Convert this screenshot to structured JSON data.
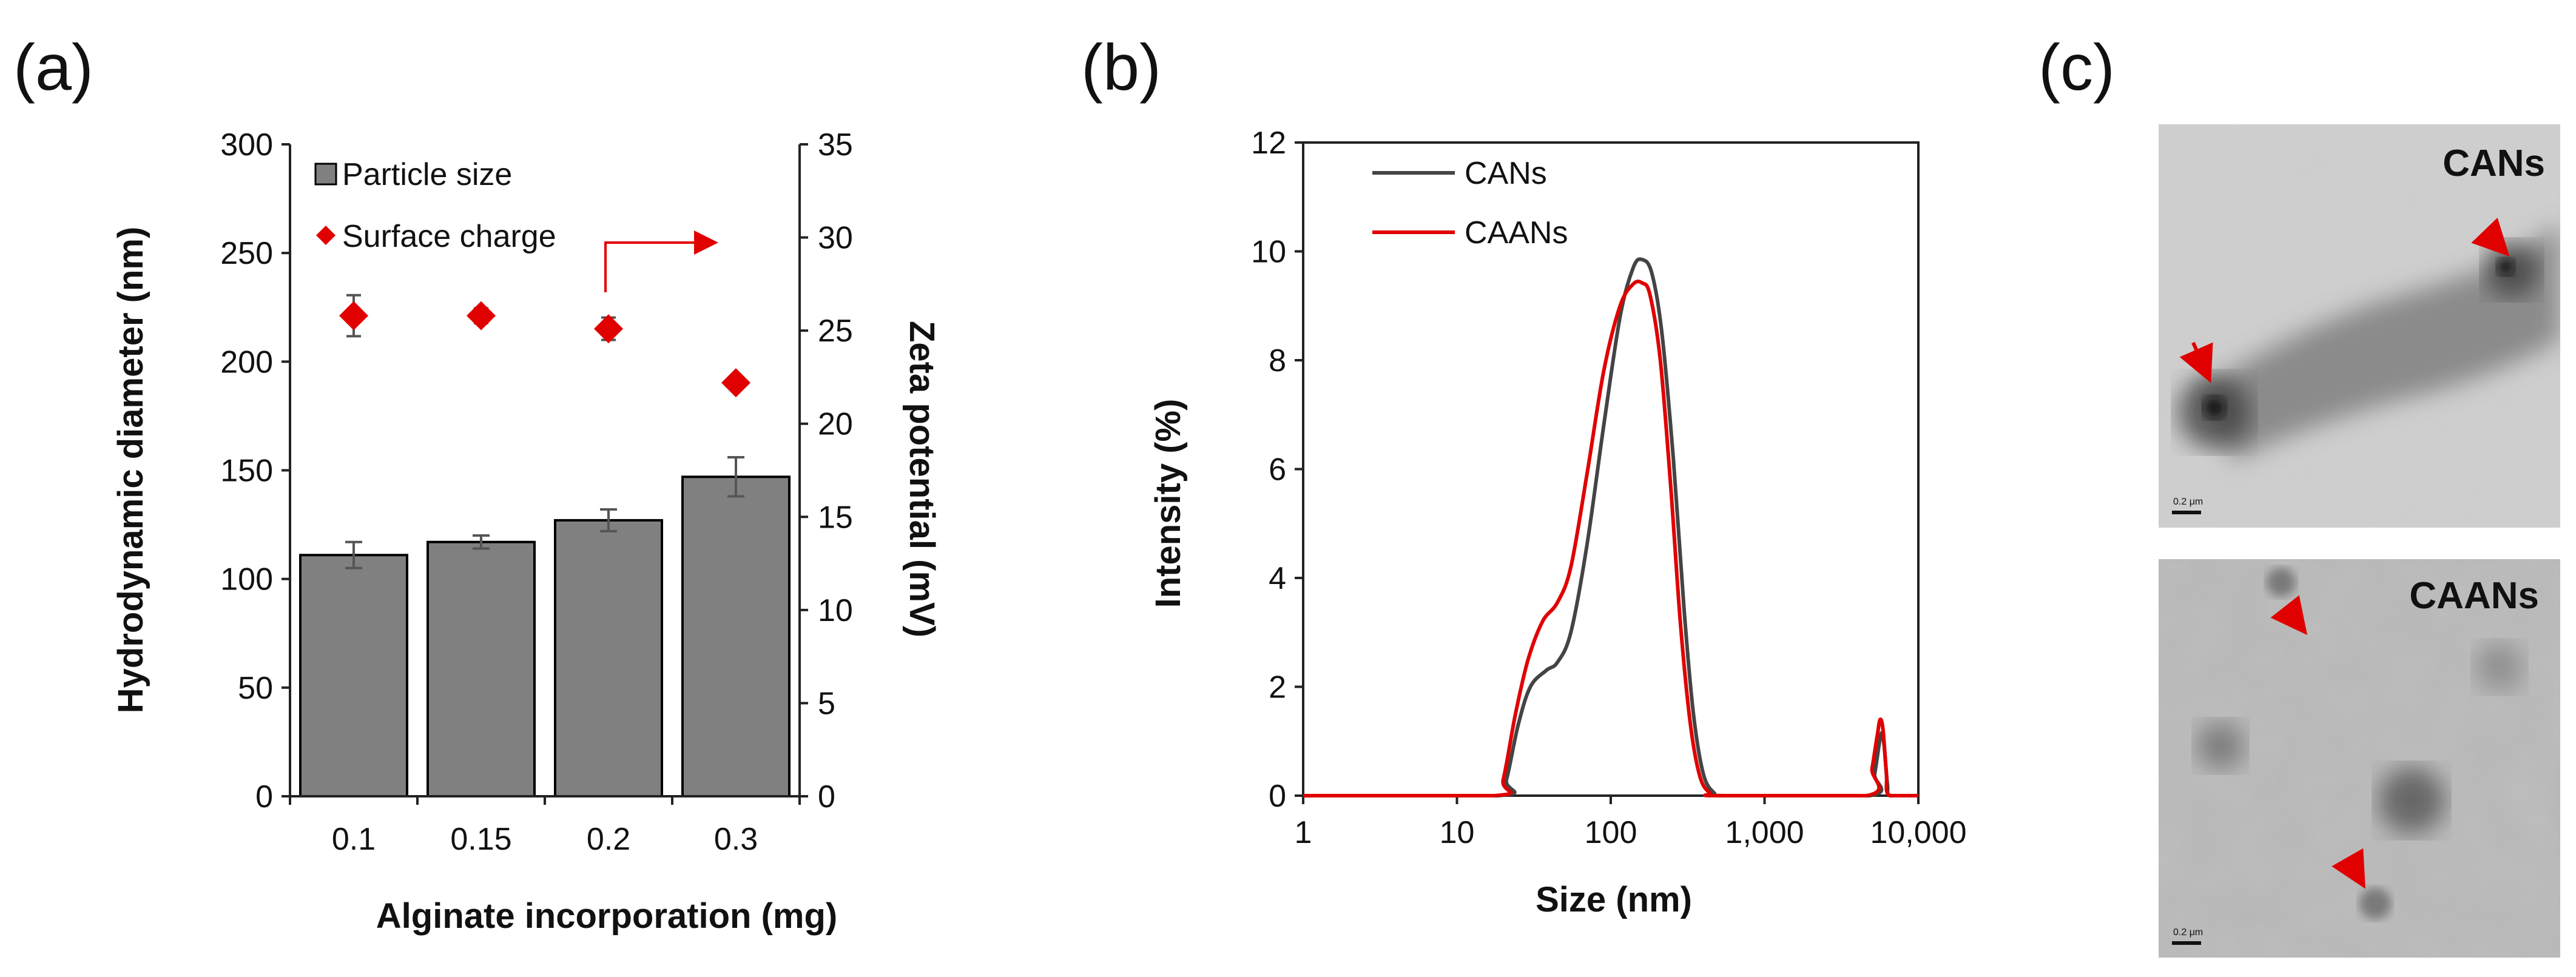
{
  "panels": {
    "a": "(a)",
    "b": "(b)",
    "c": "(c)"
  },
  "colors": {
    "bar": "#808080",
    "bar_stroke": "#000000",
    "surface_charge": "#E00000",
    "cans_line": "#444444",
    "caans_line": "#E00000",
    "arrow": "#E00000"
  },
  "chart_data": [
    {
      "id": "a",
      "type": "bar",
      "categories": [
        "0.1",
        "0.15",
        "0.2",
        "0.3"
      ],
      "series": [
        {
          "name": "Particle size",
          "axis": "left",
          "values": [
            111,
            117,
            127,
            147
          ],
          "errors": [
            6,
            3,
            5,
            9
          ]
        },
        {
          "name": "Surface charge",
          "axis": "right",
          "style": "marker",
          "values": [
            25.8,
            25.8,
            25.1,
            22.2
          ],
          "errors": [
            1.1,
            0.4,
            0.6,
            0.3
          ]
        }
      ],
      "xlabel": "Alginate incorporation (mg)",
      "ylabel": "Hydrodynamic diameter (nm)",
      "y2label": "Zeta potential (mV)",
      "ylim": [
        0,
        300
      ],
      "y2lim": [
        0,
        35
      ],
      "yticks": [
        "0",
        "50",
        "100",
        "150",
        "200",
        "250",
        "300"
      ],
      "y2ticks": [
        "0",
        "5",
        "10",
        "15",
        "20",
        "25",
        "30",
        "35"
      ],
      "legend": {
        "position": "top-left",
        "entries": [
          "Particle size",
          "Surface charge"
        ]
      },
      "annotation": "arrow pointing to right axis"
    },
    {
      "id": "b",
      "type": "line",
      "xscale": "log",
      "xlim": [
        1,
        10000
      ],
      "ylim": [
        0,
        12
      ],
      "xticks": [
        "1",
        "10",
        "100",
        "1,000",
        "10,000"
      ],
      "yticks": [
        "0",
        "2",
        "4",
        "6",
        "8",
        "10",
        "12"
      ],
      "xlabel": "Size (nm)",
      "ylabel": "Intensity (%)",
      "legend": {
        "position": "top-left",
        "entries": [
          "CANs",
          "CAANs"
        ]
      },
      "series": [
        {
          "name": "CANs",
          "points": [
            [
              1,
              0
            ],
            [
              18.5,
              0
            ],
            [
              21,
              0.3
            ],
            [
              25,
              1.3
            ],
            [
              30,
              2.0
            ],
            [
              38,
              2.3
            ],
            [
              45,
              2.45
            ],
            [
              55,
              3.0
            ],
            [
              70,
              4.6
            ],
            [
              90,
              6.8
            ],
            [
              115,
              8.8
            ],
            [
              140,
              9.7
            ],
            [
              160,
              9.85
            ],
            [
              185,
              9.6
            ],
            [
              215,
              8.5
            ],
            [
              255,
              6.2
            ],
            [
              300,
              3.4
            ],
            [
              345,
              1.5
            ],
            [
              400,
              0.4
            ],
            [
              470,
              0.05
            ],
            [
              550,
              0
            ],
            [
              4800,
              0
            ],
            [
              5200,
              0.4
            ],
            [
              5600,
              1.0
            ],
            [
              5800,
              1.15
            ],
            [
              6000,
              0.9
            ],
            [
              6300,
              0.2
            ],
            [
              6600,
              0
            ],
            [
              10000,
              0
            ]
          ]
        },
        {
          "name": "CAANs",
          "points": [
            [
              1,
              0
            ],
            [
              17.5,
              0
            ],
            [
              20,
              0.3
            ],
            [
              24,
              1.5
            ],
            [
              29,
              2.5
            ],
            [
              36,
              3.2
            ],
            [
              45,
              3.55
            ],
            [
              55,
              4.2
            ],
            [
              70,
              5.9
            ],
            [
              90,
              7.8
            ],
            [
              115,
              9.0
            ],
            [
              140,
              9.4
            ],
            [
              160,
              9.42
            ],
            [
              180,
              9.2
            ],
            [
              210,
              8.0
            ],
            [
              245,
              5.7
            ],
            [
              285,
              3.1
            ],
            [
              330,
              1.3
            ],
            [
              380,
              0.35
            ],
            [
              440,
              0.05
            ],
            [
              500,
              0
            ],
            [
              4600,
              0
            ],
            [
              5000,
              0.5
            ],
            [
              5400,
              1.1
            ],
            [
              5650,
              1.4
            ],
            [
              5900,
              1.2
            ],
            [
              6200,
              0.4
            ],
            [
              6500,
              0
            ],
            [
              10000,
              0
            ]
          ]
        }
      ]
    }
  ],
  "tem": {
    "top_label": "CANs",
    "bottom_label": "CAANs",
    "scale_bar_top": "0.2 μm",
    "scale_bar_bottom": "0.2 μm"
  }
}
